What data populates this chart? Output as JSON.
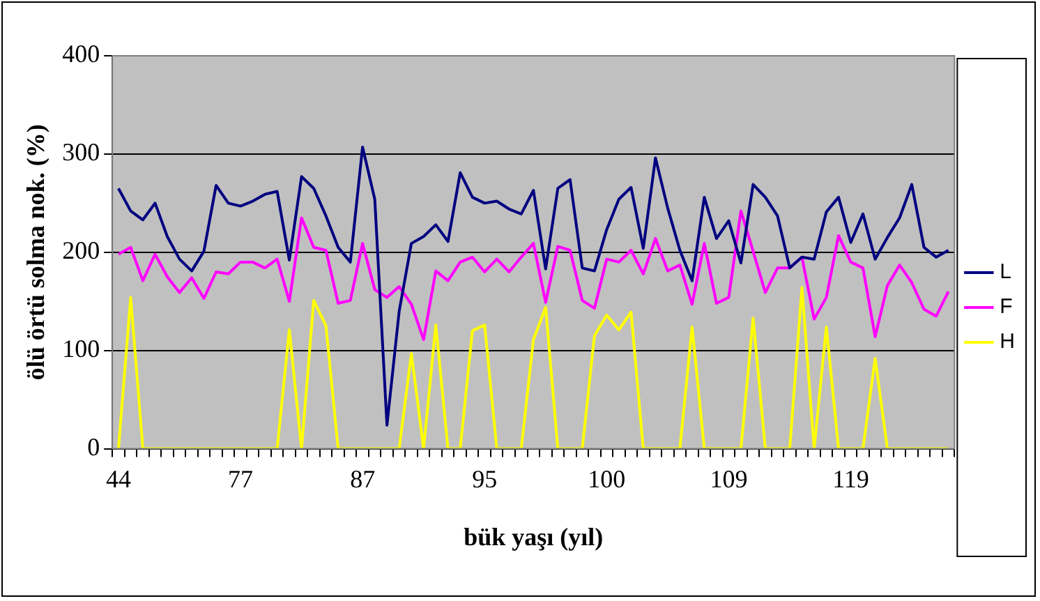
{
  "chart_data": {
    "type": "line",
    "xlabel": "bük yaşı (yıl)",
    "ylabel": "ölü örtü solma nok. (%)",
    "categories": [
      "44",
      null,
      null,
      null,
      null,
      null,
      null,
      null,
      null,
      null,
      "77",
      null,
      null,
      null,
      null,
      null,
      null,
      null,
      null,
      null,
      "87",
      null,
      null,
      null,
      null,
      null,
      null,
      null,
      null,
      null,
      "95",
      null,
      null,
      null,
      null,
      null,
      null,
      null,
      null,
      null,
      "100",
      null,
      null,
      null,
      null,
      null,
      null,
      null,
      null,
      null,
      "109",
      null,
      null,
      null,
      null,
      null,
      null,
      null,
      null,
      null,
      "119",
      null,
      null,
      null,
      null,
      null,
      null,
      null,
      null
    ],
    "series": [
      {
        "name": "L",
        "color": "#000080",
        "values": [
          265,
          242,
          233,
          250,
          216,
          193,
          181,
          201,
          268,
          250,
          247,
          252,
          259,
          262,
          192,
          277,
          265,
          237,
          205,
          190,
          307,
          254,
          24,
          140,
          209,
          216,
          228,
          211,
          281,
          256,
          250,
          252,
          244,
          239,
          263,
          183,
          265,
          274,
          184,
          181,
          223,
          254,
          266,
          204,
          296,
          245,
          202,
          171,
          256,
          214,
          232,
          189,
          269,
          256,
          237,
          184,
          195,
          193,
          241,
          256,
          210,
          239,
          193,
          215,
          235,
          269,
          205,
          195,
          202
        ]
      },
      {
        "name": "F",
        "color": "#ff00ff",
        "values": [
          198,
          205,
          171,
          198,
          175,
          159,
          174,
          153,
          180,
          178,
          190,
          190,
          184,
          193,
          150,
          235,
          205,
          202,
          148,
          151,
          209,
          162,
          154,
          165,
          147,
          111,
          181,
          171,
          190,
          195,
          180,
          193,
          180,
          195,
          209,
          149,
          206,
          202,
          151,
          143,
          193,
          190,
          202,
          178,
          214,
          181,
          187,
          147,
          209,
          148,
          154,
          242,
          201,
          159,
          184,
          184,
          195,
          132,
          154,
          217,
          190,
          184,
          114,
          166,
          187,
          169,
          142,
          135,
          160
        ]
      },
      {
        "name": "H",
        "color": "#ffff00",
        "values": [
          0,
          154,
          0,
          0,
          0,
          0,
          0,
          0,
          0,
          0,
          0,
          0,
          0,
          0,
          121,
          0,
          151,
          125,
          0,
          0,
          0,
          0,
          0,
          0,
          97,
          0,
          126,
          0,
          0,
          120,
          126,
          0,
          0,
          0,
          111,
          144,
          0,
          0,
          0,
          115,
          136,
          121,
          139,
          0,
          0,
          0,
          0,
          124,
          0,
          0,
          0,
          0,
          133,
          0,
          0,
          0,
          164,
          0,
          124,
          0,
          0,
          0,
          92,
          0,
          0,
          0,
          0,
          0,
          0
        ]
      }
    ],
    "ylim": [
      0,
      400
    ],
    "yticks": [
      0,
      100,
      200,
      300,
      400
    ],
    "grid": "y",
    "legend": "right",
    "marker": "none",
    "line_style": "solid"
  }
}
